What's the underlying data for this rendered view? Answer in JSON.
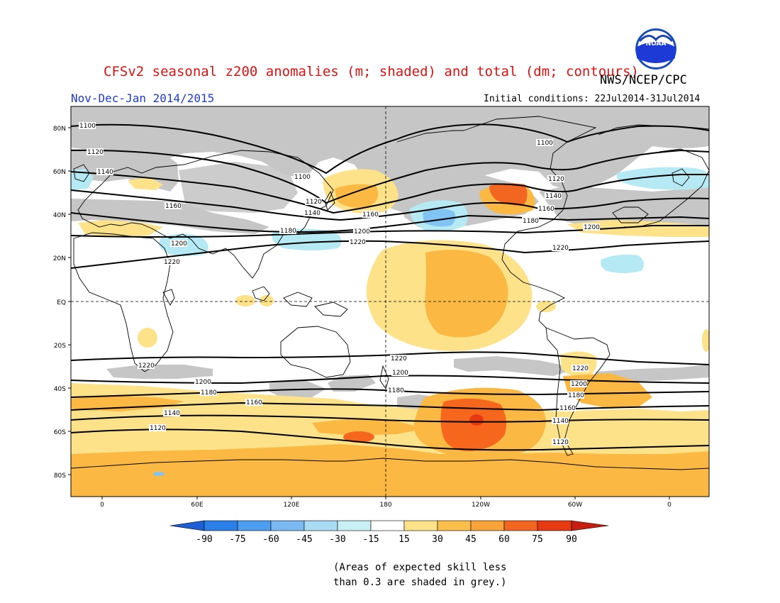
{
  "header": {
    "title": "CFSv2 seasonal z200 anomalies (m; shaded) and total (dm; contours)",
    "agency": "NWS/NCEP/CPC",
    "season": "Nov-Dec-Jan 2014/2015",
    "initial_conditions": "Initial conditions: 22Jul2014-31Jul2014",
    "logo_text": "NOAA"
  },
  "axes": {
    "lat_labels": [
      "80N",
      "60N",
      "40N",
      "20N",
      "EQ",
      "20S",
      "40S",
      "60S",
      "80S"
    ],
    "lon_labels": [
      "0",
      "60E",
      "120E",
      "180",
      "120W",
      "60W",
      "0"
    ]
  },
  "colorbar": {
    "labels": [
      "-90",
      "-75",
      "-60",
      "-45",
      "-30",
      "-15",
      "15",
      "30",
      "45",
      "60",
      "75",
      "90"
    ],
    "colors": [
      "#1e5fd6",
      "#2b7fe8",
      "#4d9ef0",
      "#7ab9f2",
      "#a9dcf4",
      "#c9f0f4",
      "#ffffff",
      "#fde28a",
      "#fbc04c",
      "#f9a33a",
      "#f26622",
      "#e83a12",
      "#c81e10"
    ]
  },
  "shading": {
    "grey": "#c6c6c6",
    "light_yellow": "#fde28a",
    "orange": "#fbb843",
    "dark_orange": "#f6661c",
    "red": "#f04a12",
    "light_blue": "#b5eaf4",
    "mid_blue": "#7fc4f2"
  },
  "contours": [
    {
      "label": "1100"
    },
    {
      "label": "1120"
    },
    {
      "label": "1140"
    },
    {
      "label": "1160"
    },
    {
      "label": "1180"
    },
    {
      "label": "1200"
    },
    {
      "label": "1220"
    }
  ],
  "note": {
    "line1": "(Areas of expected skill less",
    "line2": "than 0.3 are shaded in grey.)"
  }
}
